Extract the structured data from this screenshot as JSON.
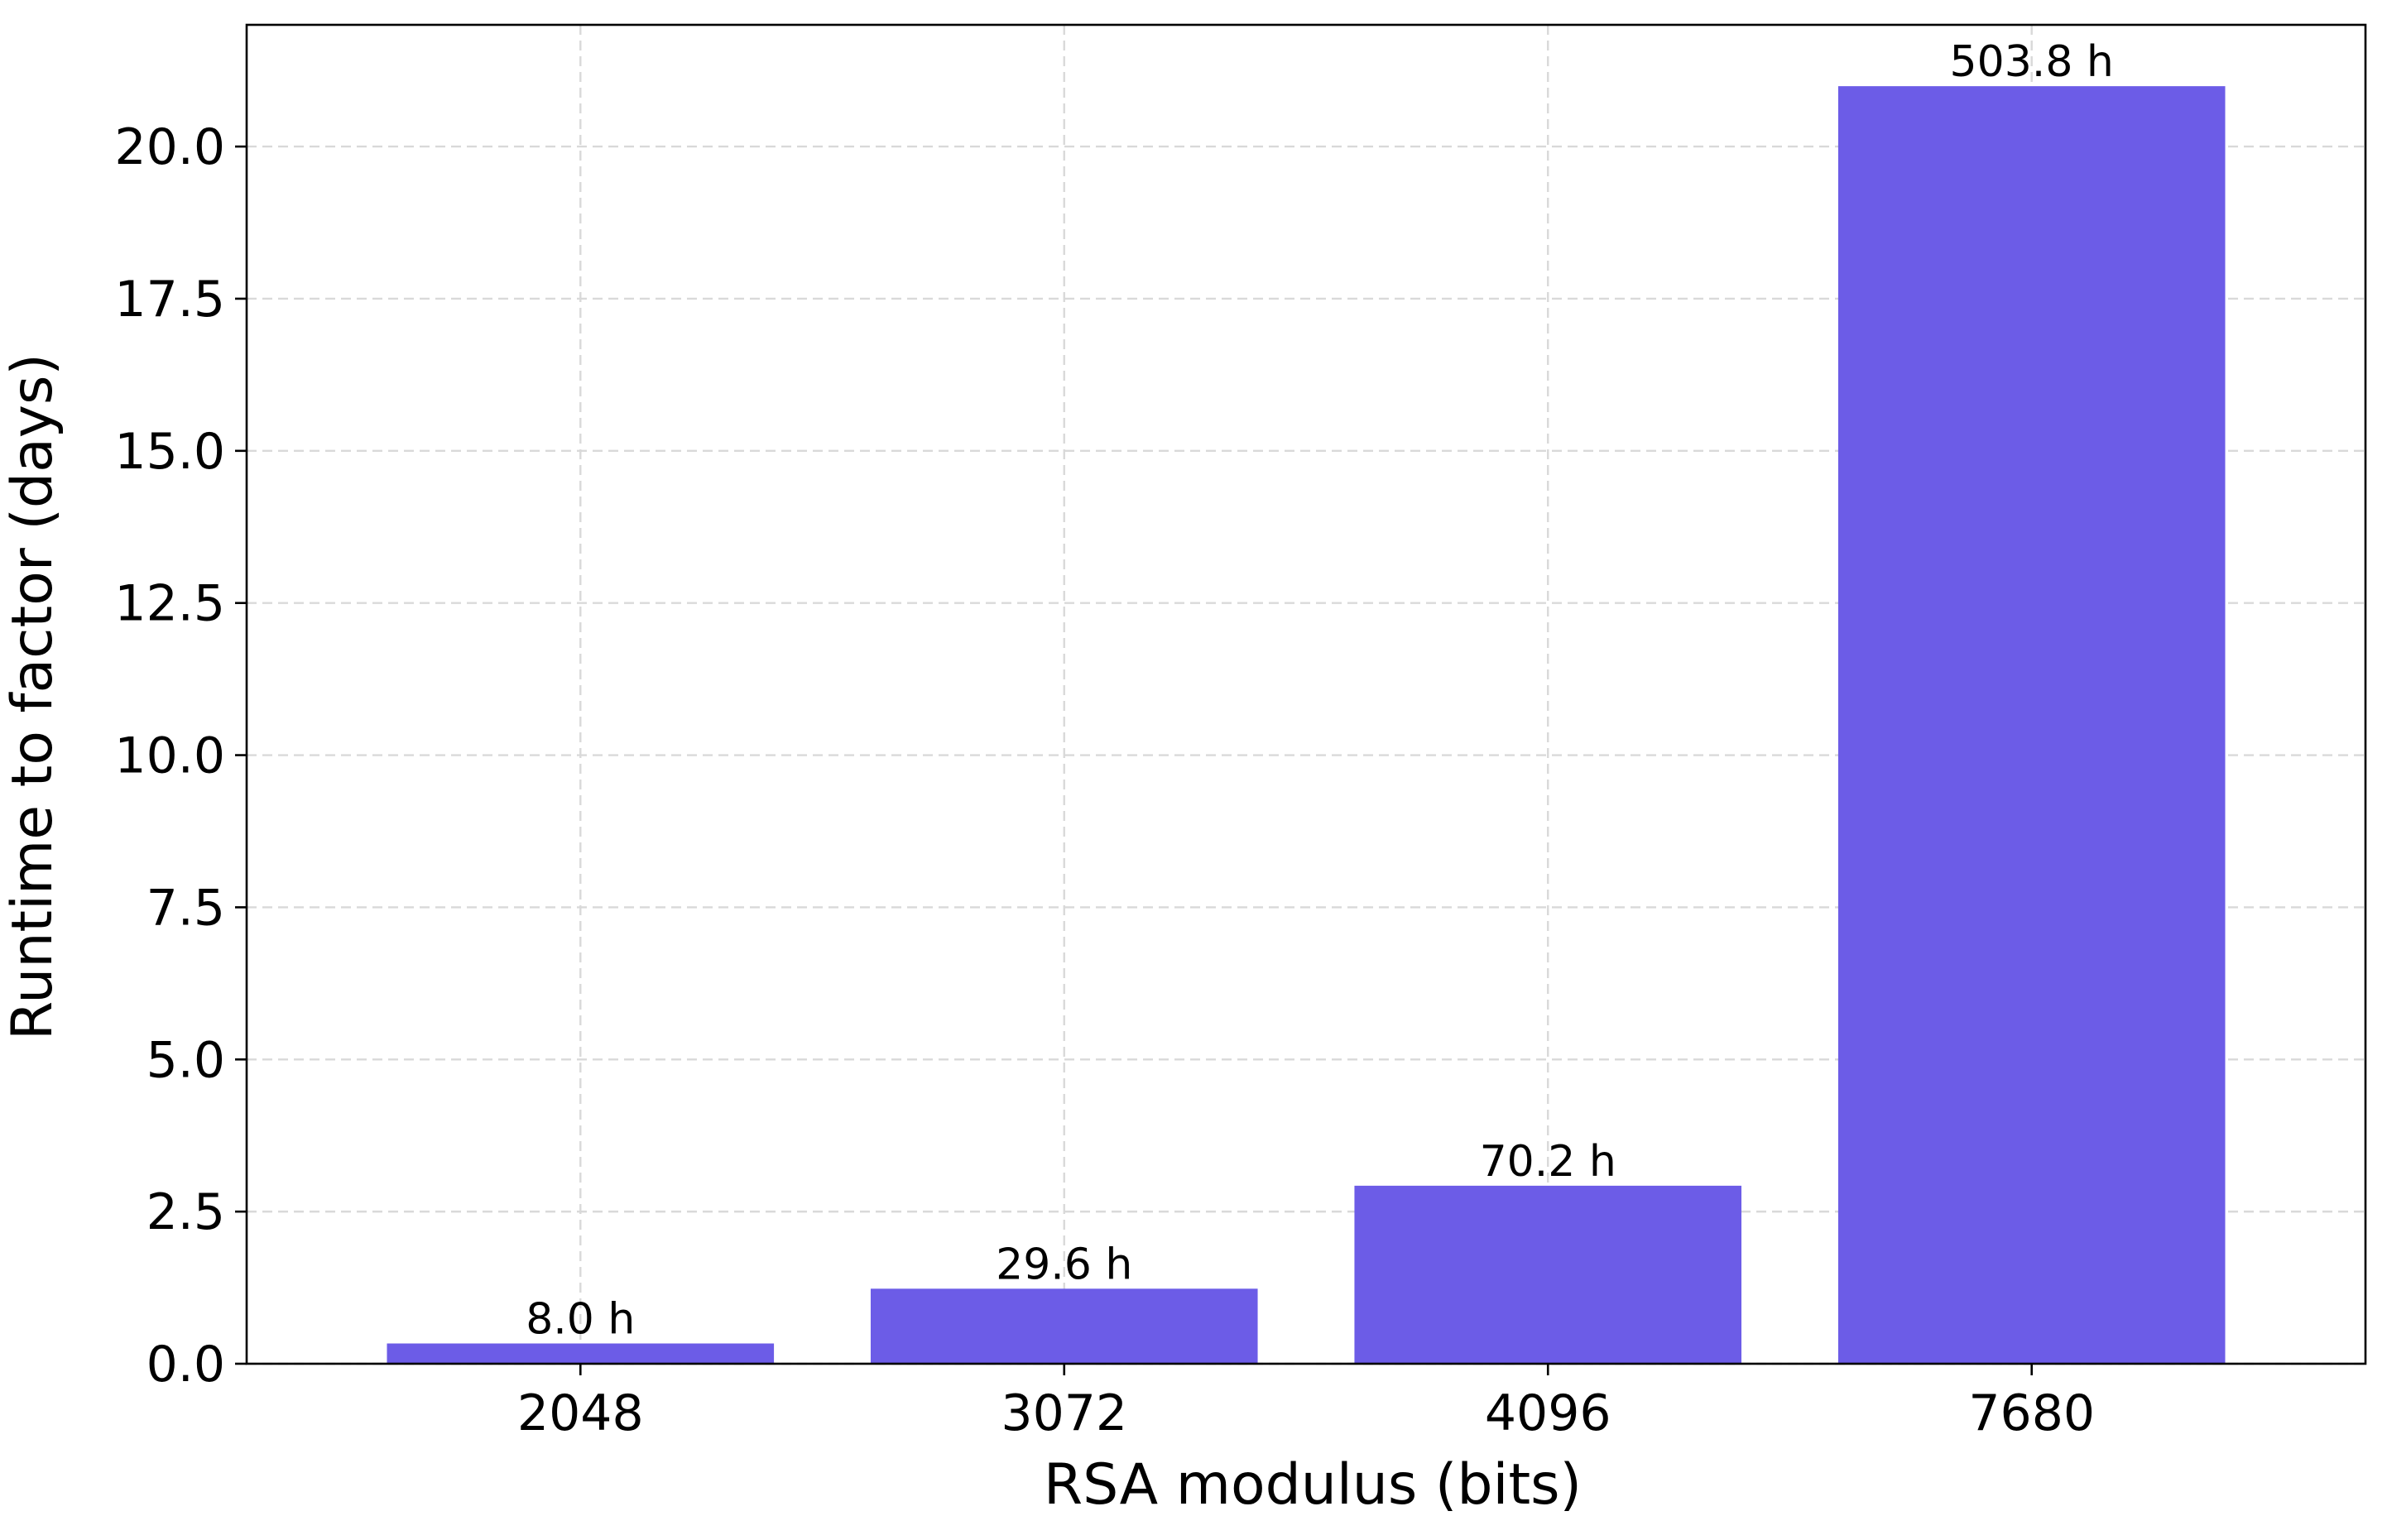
{
  "chart_data": {
    "type": "bar",
    "title": "",
    "xlabel": "RSA modulus (bits)",
    "ylabel": "Runtime to factor (days)",
    "categories": [
      "2048",
      "3072",
      "4096",
      "7680"
    ],
    "values": [
      0.333,
      1.233,
      2.925,
      20.992
    ],
    "bar_labels": [
      "8.0 h",
      "29.6 h",
      "70.2 h",
      "503.8 h"
    ],
    "ylim": [
      0,
      22
    ],
    "yticks": [
      0.0,
      2.5,
      5.0,
      7.5,
      10.0,
      12.5,
      15.0,
      17.5,
      20.0
    ],
    "ytick_labels": [
      "0.0",
      "2.5",
      "5.0",
      "7.5",
      "10.0",
      "12.5",
      "15.0",
      "17.5",
      "20.0"
    ],
    "grid": true,
    "grid_style": "dashed",
    "legend": "none",
    "colors": {
      "bar": "#6c5ce7",
      "grid": "#d9d9d9",
      "axis": "#000000"
    }
  }
}
